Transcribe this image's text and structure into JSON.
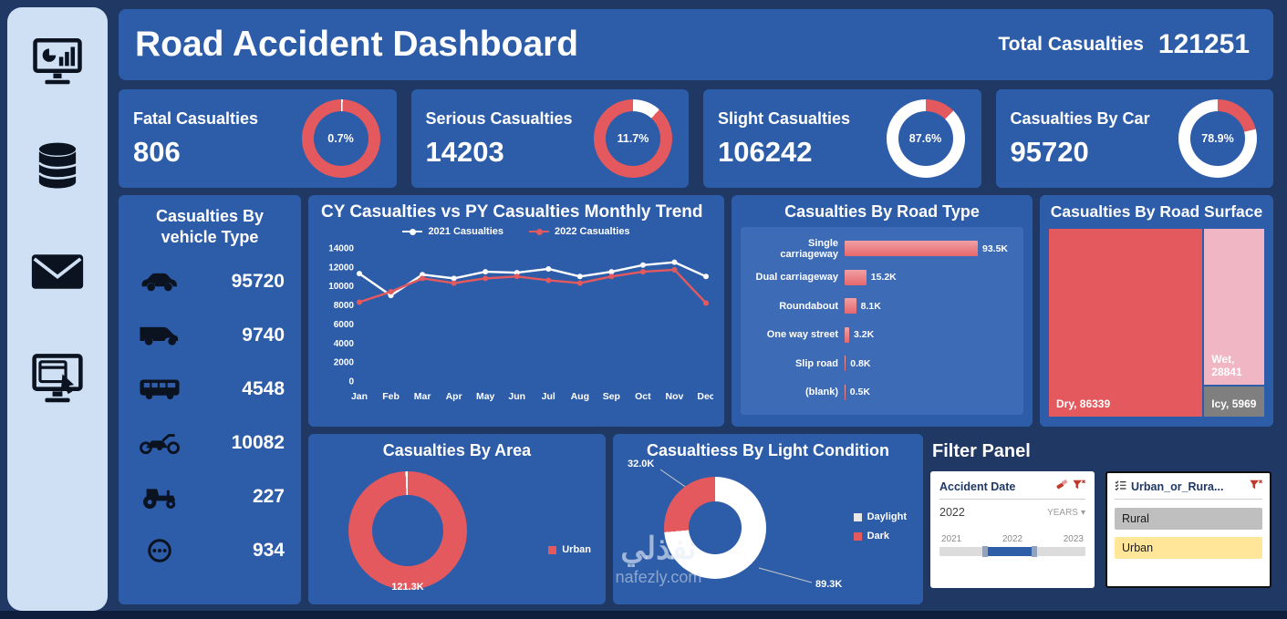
{
  "colors": {
    "background": "#1F3864",
    "panel_blue": "#2D5CA8",
    "accent_red": "#E4595E",
    "treemap_pink": "#F1B6C4",
    "treemap_gray": "#7F7F7F",
    "selected_gray": "#BFBFBF",
    "selected_yellow": "#FFE699",
    "slider_blue": "#2E5EA8",
    "daylight_white": "#E8E8E8"
  },
  "header": {
    "title": "Road Accident Dashboard",
    "total_label": "Total Casualties",
    "total_value": "121251"
  },
  "sidebar": {
    "icons": [
      "analytics-icon",
      "database-icon",
      "mail-icon",
      "web-monitor-icon"
    ]
  },
  "kpis": [
    {
      "title": "Fatal Casualties",
      "value": "806",
      "pct_label": "0.7%",
      "segments": [
        {
          "color": "#FFFFFF",
          "pct": 0.7
        },
        {
          "color": "#E4595E",
          "pct": 99.3
        }
      ]
    },
    {
      "title": "Serious Casualties",
      "value": "14203",
      "pct_label": "11.7%",
      "segments": [
        {
          "color": "#FFFFFF",
          "pct": 11.7
        },
        {
          "color": "#E4595E",
          "pct": 88.3
        }
      ]
    },
    {
      "title": "Slight Casualties",
      "value": "106242",
      "pct_label": "87.6%",
      "segments": [
        {
          "color": "#E4595E",
          "pct": 12.4
        },
        {
          "color": "#FFFFFF",
          "pct": 87.6
        }
      ]
    },
    {
      "title": "Casualties By Car",
      "value": "95720",
      "pct_label": "78.9%",
      "segments": [
        {
          "color": "#E4595E",
          "pct": 21.1
        },
        {
          "color": "#FFFFFF",
          "pct": 78.9
        }
      ]
    }
  ],
  "vehicle_panel": {
    "title": "Casualties By vehicle Type",
    "rows": [
      {
        "vehicle": "car",
        "value": "95720"
      },
      {
        "vehicle": "van",
        "value": "9740"
      },
      {
        "vehicle": "bus",
        "value": "4548"
      },
      {
        "vehicle": "motorcycle",
        "value": "10082"
      },
      {
        "vehicle": "agricultural",
        "value": "227"
      },
      {
        "vehicle": "other",
        "value": "934"
      }
    ]
  },
  "chart_data": [
    {
      "type": "line",
      "title": "CY Casualties vs PY Casualties Monthly Trend",
      "categories": [
        "Jan",
        "Feb",
        "Mar",
        "Apr",
        "May",
        "Jun",
        "Jul",
        "Aug",
        "Sep",
        "Oct",
        "Nov",
        "Dec"
      ],
      "series": [
        {
          "name": "2021 Casualties",
          "color": "#FFFFFF",
          "values": [
            11300,
            9000,
            11200,
            10800,
            11500,
            11400,
            11800,
            11000,
            11500,
            12200,
            12500,
            11000
          ]
        },
        {
          "name": "2022 Casualties",
          "color": "#E4595E",
          "values": [
            8300,
            9400,
            10800,
            10300,
            10800,
            11000,
            10600,
            10300,
            11000,
            11500,
            11700,
            8200
          ]
        }
      ],
      "ylim": [
        0,
        14000
      ],
      "ytick_step": 2000,
      "grid": false,
      "legend_position": "top"
    },
    {
      "type": "bar",
      "orientation": "horizontal",
      "title": "Casualties By Road Type",
      "categories": [
        "Single carriageway",
        "Dual carriageway",
        "Roundabout",
        "One way street",
        "Slip road",
        "(blank)"
      ],
      "values_k": [
        93.5,
        15.2,
        8.1,
        3.2,
        0.8,
        0.5
      ],
      "value_labels": [
        "93.5K",
        "15.2K",
        "8.1K",
        "3.2K",
        "0.8K",
        "0.5K"
      ],
      "bar_color": "#EC8A8E"
    },
    {
      "type": "treemap",
      "title": "Casualties By Road Surface",
      "items": [
        {
          "label": "Dry, 86339",
          "value": 86339,
          "color": "#E4595E"
        },
        {
          "label": "Wet, 28841",
          "value": 28841,
          "color": "#F1B6C4"
        },
        {
          "label": "Icy, 5969",
          "value": 5969,
          "color": "#7F7F7F"
        }
      ]
    },
    {
      "type": "pie",
      "title": "Casualties By Area",
      "slices": [
        {
          "label": "Urban",
          "value_label": "121.3K",
          "color": "#E4595E",
          "pct": 99.4
        },
        {
          "label": "",
          "value_label": "",
          "color": "#FFFFFF",
          "pct": 0.6
        }
      ],
      "legend": [
        {
          "label": "Urban",
          "color": "#E4595E"
        }
      ]
    },
    {
      "type": "pie",
      "title": "Casualtiess By Light Condition",
      "start_angle": 265,
      "slices": [
        {
          "label": "Dark",
          "value_label": "32.0K",
          "color": "#E4595E",
          "pct": 26.4
        },
        {
          "label": "Daylight",
          "value_label": "89.3K",
          "color": "#FFFFFF",
          "pct": 73.6
        }
      ],
      "legend": [
        {
          "label": "Daylight",
          "color": "#E8E8E8"
        },
        {
          "label": "Dark",
          "color": "#E4595E"
        }
      ]
    }
  ],
  "filter_panel": {
    "title": "Filter Panel",
    "date_slicer": {
      "title": "Accident Date",
      "selected_value": "2022",
      "granularity": "YEARS",
      "years": [
        "2021",
        "2022",
        "2023"
      ]
    },
    "urban_slicer": {
      "title": "Urban_or_Rura...",
      "items": [
        {
          "label": "Rural"
        },
        {
          "label": "Urban"
        }
      ]
    }
  },
  "watermark": {
    "name": "نفذلي",
    "site": "nafezly.com"
  }
}
